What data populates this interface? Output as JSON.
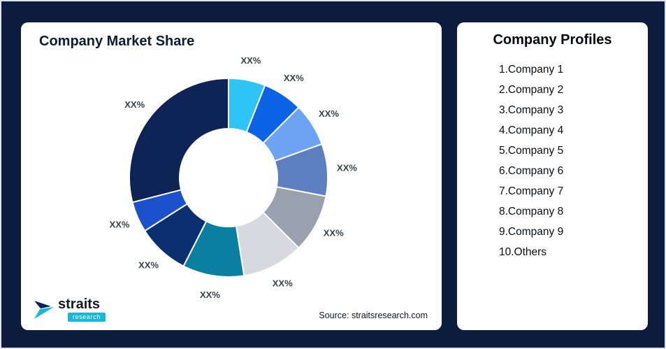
{
  "left_card": {
    "title": "Company Market Share",
    "source": "Source: straitsresearch.com",
    "logo": {
      "brand": "straits",
      "sub": "research"
    }
  },
  "right_card": {
    "title": "Company Profiles",
    "items": [
      "1.Company 1",
      "2.Company 2",
      "3.Company 3",
      "4.Company 4",
      "5.Company 5",
      "6.Company 6",
      "7.Company 7",
      "8.Company 8",
      "9.Company 9",
      "10.Others"
    ]
  },
  "chart_data": {
    "type": "pie",
    "donut": true,
    "title": "Company Market Share",
    "start_angle_deg": 0,
    "direction": "clockwise",
    "legend_position": "none",
    "segments": [
      {
        "label": "XX%",
        "value": 6,
        "color": "#2fc4f6"
      },
      {
        "label": "XX%",
        "value": 6.5,
        "color": "#0b63e6"
      },
      {
        "label": "XX%",
        "value": 7,
        "color": "#6da3f2"
      },
      {
        "label": "XX%",
        "value": 8.5,
        "color": "#5d7fc0"
      },
      {
        "label": "XX%",
        "value": 9.5,
        "color": "#98a1ad"
      },
      {
        "label": "XX%",
        "value": 10,
        "color": "#d6d9dd"
      },
      {
        "label": "XX%",
        "value": 10,
        "color": "#0b7fa0"
      },
      {
        "label": "XX%",
        "value": 8.5,
        "color": "#0c2f6f"
      },
      {
        "label": "XX%",
        "value": 5,
        "color": "#1b52cc"
      },
      {
        "label": "XX%",
        "value": 29,
        "color": "#0e2356"
      }
    ]
  }
}
